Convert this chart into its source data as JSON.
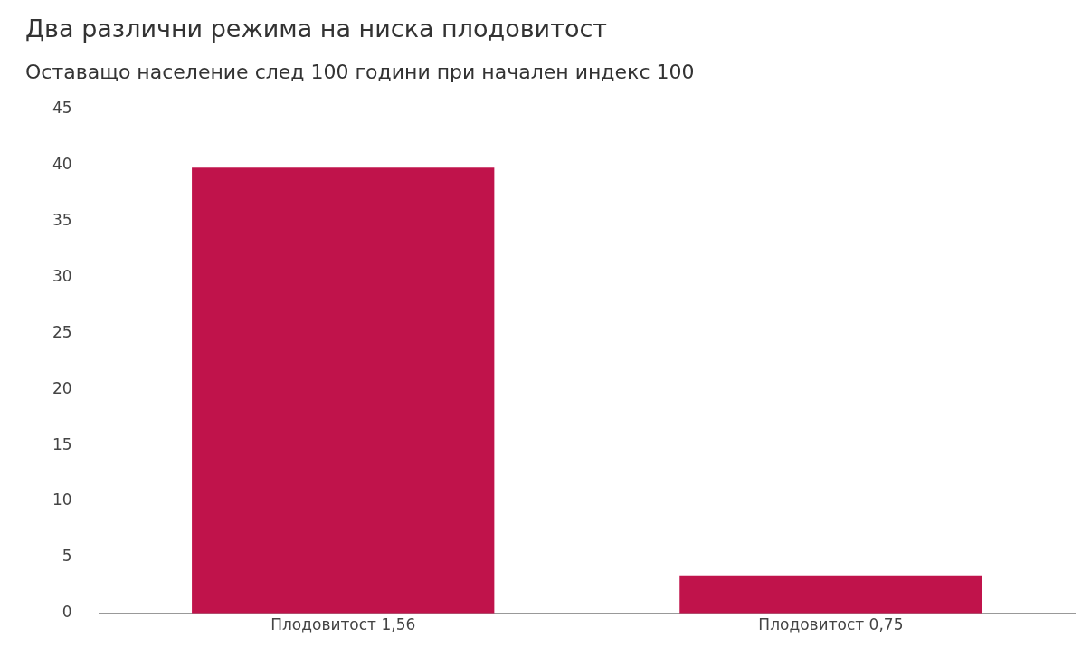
{
  "chart_data": {
    "type": "bar",
    "title": "Два различни режима на ниска плодовитост",
    "subtitle": "Оставащо население след 100 години при начален индекс 100",
    "categories": [
      "Плодовитост 1,56",
      "Плодовитост 0,75"
    ],
    "values": [
      39.8,
      3.4
    ],
    "color": "#c0134b",
    "ylim": [
      0,
      45
    ],
    "yticks": [
      0,
      5,
      10,
      15,
      20,
      25,
      30,
      35,
      40,
      45
    ],
    "grid": false,
    "legend": false
  }
}
